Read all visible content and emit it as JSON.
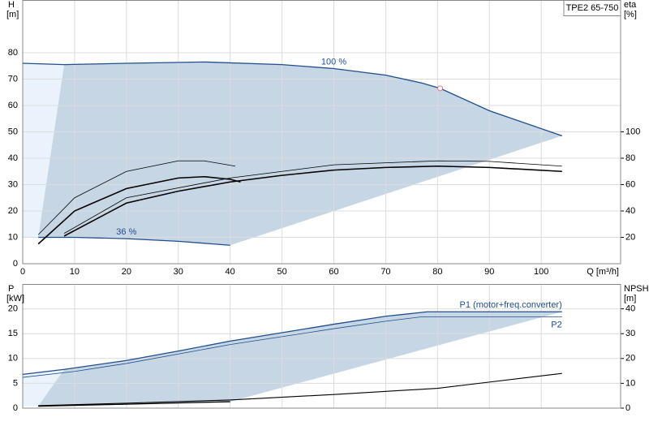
{
  "chart_data": [
    {
      "type": "line",
      "title": "TPE2 65-750",
      "ylabel": "H",
      "ylabel_unit": "[m]",
      "y2label": "eta",
      "y2label_unit": "[%]",
      "xlabel": "Q [m³/h]",
      "xlim": [
        0,
        115.3
      ],
      "xticks": [
        0,
        10,
        20,
        30,
        40,
        50,
        60,
        70,
        80,
        90,
        100
      ],
      "xtick_labels": true,
      "ylim": [
        0,
        100
      ],
      "yticks": [
        0,
        10,
        20,
        30,
        40,
        50,
        60,
        70,
        80
      ],
      "y2lim": [
        0,
        200
      ],
      "y2ticks": [
        20,
        40,
        60,
        80,
        100
      ],
      "grid": true,
      "shade_color": "#c6d6e5",
      "light_shade_color": "#eaf3fb",
      "marker": {
        "x": 80.5,
        "y": 66.5,
        "color": "#e07a8a"
      },
      "series": [
        {
          "name": "100 %",
          "color": "#1f4e8c",
          "width": 1.3,
          "label_at": "mid",
          "label_side": "above",
          "x": [
            0,
            8,
            20,
            35,
            50,
            60,
            70,
            77,
            80.5,
            90,
            104
          ],
          "values": [
            76,
            75.5,
            76,
            76.5,
            75.5,
            74,
            71.5,
            68.5,
            66.5,
            58,
            48.5
          ]
        },
        {
          "name": "36 %",
          "color": "#1f4e8c",
          "width": 1.3,
          "label_at": "mid",
          "label_side": "above",
          "x": [
            3,
            10,
            20,
            30,
            40
          ],
          "values": [
            10,
            10,
            9.5,
            8.5,
            7
          ]
        },
        {
          "color": "#000000",
          "width": 1.6,
          "axis": "y2",
          "x": [
            8,
            20,
            30,
            40,
            50,
            60,
            70,
            80,
            90,
            104
          ],
          "values": [
            21,
            46,
            55,
            62,
            67,
            71,
            73,
            74,
            73,
            70
          ]
        },
        {
          "color": "#000000",
          "width": 0.8,
          "axis": "y2",
          "x": [
            8,
            20,
            40,
            60,
            80,
            90,
            104
          ],
          "values": [
            23,
            50,
            65,
            75,
            78,
            77.6,
            74
          ]
        },
        {
          "color": "#000000",
          "width": 1.6,
          "axis": "y2",
          "x": [
            3,
            10,
            20,
            30,
            35,
            40,
            42
          ],
          "values": [
            15,
            40,
            57,
            65,
            66,
            64,
            62
          ]
        },
        {
          "color": "#000000",
          "width": 0.8,
          "axis": "y2",
          "x": [
            3,
            10,
            20,
            30,
            35,
            41
          ],
          "values": [
            22,
            50,
            70,
            78,
            78,
            74
          ]
        }
      ]
    },
    {
      "type": "line",
      "ylabel": "P",
      "ylabel_unit": "[kW]",
      "y2label": "NPSH",
      "y2label_unit": "[m]",
      "xlim": [
        0,
        115.3
      ],
      "xticks": [
        0,
        10,
        20,
        30,
        40,
        50,
        60,
        70,
        80,
        90,
        100
      ],
      "xtick_labels": false,
      "ylim": [
        0,
        25
      ],
      "yticks": [
        0,
        5,
        10,
        15,
        20
      ],
      "y2lim": [
        0,
        50
      ],
      "y2ticks": [
        0,
        10,
        20,
        30,
        40
      ],
      "grid": true,
      "shade_color": "#c6d6e5",
      "light_shade_color": "#eaf3fb",
      "series": [
        {
          "name": "P1 (motor+freq.converter)",
          "color": "#1f4e8c",
          "width": 1.3,
          "label_at": "end",
          "label_side": "above",
          "x": [
            0,
            8,
            20,
            30,
            40,
            50,
            60,
            70,
            78,
            104
          ],
          "values": [
            6.8,
            7.8,
            9.6,
            11.5,
            13.5,
            15.2,
            16.9,
            18.5,
            19.4,
            19.4
          ]
        },
        {
          "color": "#000000",
          "width": 1.3,
          "x": [
            3,
            20,
            40
          ],
          "values": [
            0.4,
            0.8,
            1.3
          ]
        },
        {
          "name": "P2",
          "color": "#1f4e8c",
          "width": 0.8,
          "label_at": "end",
          "label_side": "below",
          "x": [
            0,
            10,
            20,
            40,
            60,
            70,
            77,
            104
          ],
          "values": [
            6.2,
            7.4,
            9,
            12.8,
            16,
            17.5,
            18.4,
            18.4
          ]
        },
        {
          "color": "#000000",
          "width": 1.1,
          "axis": "y2",
          "x": [
            3,
            20,
            40,
            60,
            80,
            90,
            104
          ],
          "values": [
            1,
            2,
            3.3,
            5.5,
            8,
            10.5,
            14
          ]
        }
      ]
    }
  ]
}
